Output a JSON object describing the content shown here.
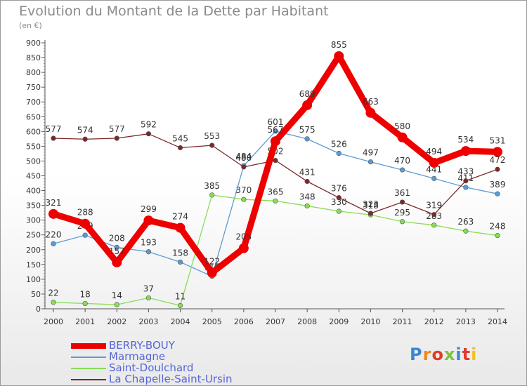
{
  "header": {
    "title": "Evolution du Montant de la Dette par Habitant",
    "unit": "(en €)"
  },
  "logo": {
    "text": "Proxiti"
  },
  "chart_data": {
    "type": "line",
    "title": "Evolution du Montant de la Dette par Habitant",
    "ylabel": "(en €)",
    "xlabel": "",
    "x": [
      "2000",
      "2001",
      "2002",
      "2003",
      "2004",
      "2005",
      "2006",
      "2007",
      "2008",
      "2009",
      "2010",
      "2011",
      "2012",
      "2013",
      "2014"
    ],
    "yticks": [
      "0",
      "50",
      "100",
      "150",
      "200",
      "250",
      "300",
      "350",
      "400",
      "450",
      "500",
      "550",
      "600",
      "650",
      "700",
      "750",
      "800",
      "850",
      "900"
    ],
    "ylim": [
      0,
      900
    ],
    "grid": false,
    "legend_position": "bottom-left",
    "series": [
      {
        "name": "BERRY-BOUY",
        "color": "#ee0000",
        "emphasis": "thick",
        "values": [
          321,
          288,
          157,
          299,
          274,
          122,
          205,
          567,
          689,
          855,
          663,
          580,
          494,
          534,
          531
        ],
        "labels": [
          "321",
          "288",
          "157",
          "299",
          "274",
          "122",
          "205",
          "567",
          "689",
          "855",
          "663",
          "580",
          "494",
          "534",
          "531"
        ]
      },
      {
        "name": "Marmagne",
        "color": "#5b9bd5",
        "emphasis": "thin",
        "values": [
          220,
          249,
          208,
          193,
          158,
          110,
          484,
          601,
          575,
          526,
          497,
          470,
          441,
          411,
          389
        ],
        "labels": [
          "220",
          "249",
          "208",
          "193",
          "158",
          "110",
          "484",
          "601",
          "575",
          "526",
          "497",
          "470",
          "441",
          "411",
          "389"
        ]
      },
      {
        "name": "Saint-Doulchard",
        "color": "#88dd55",
        "emphasis": "thin",
        "values": [
          22,
          18,
          14,
          37,
          11,
          385,
          370,
          365,
          348,
          330,
          318,
          295,
          283,
          263,
          248
        ],
        "labels": [
          "22",
          "18",
          "14",
          "37",
          "11",
          "385",
          "370",
          "365",
          "348",
          "330",
          "318",
          "295",
          "283",
          "263",
          "248"
        ]
      },
      {
        "name": "La Chapelle-Saint-Ursin",
        "color": "#7a2a2a",
        "emphasis": "thin",
        "values": [
          577,
          574,
          577,
          592,
          545,
          553,
          480,
          502,
          431,
          376,
          323,
          361,
          319,
          433,
          472
        ],
        "labels": [
          "577",
          "574",
          "577",
          "592",
          "545",
          "553",
          "480",
          "502",
          "431",
          "376",
          "323",
          "361",
          "319",
          "433",
          "472"
        ]
      }
    ]
  }
}
